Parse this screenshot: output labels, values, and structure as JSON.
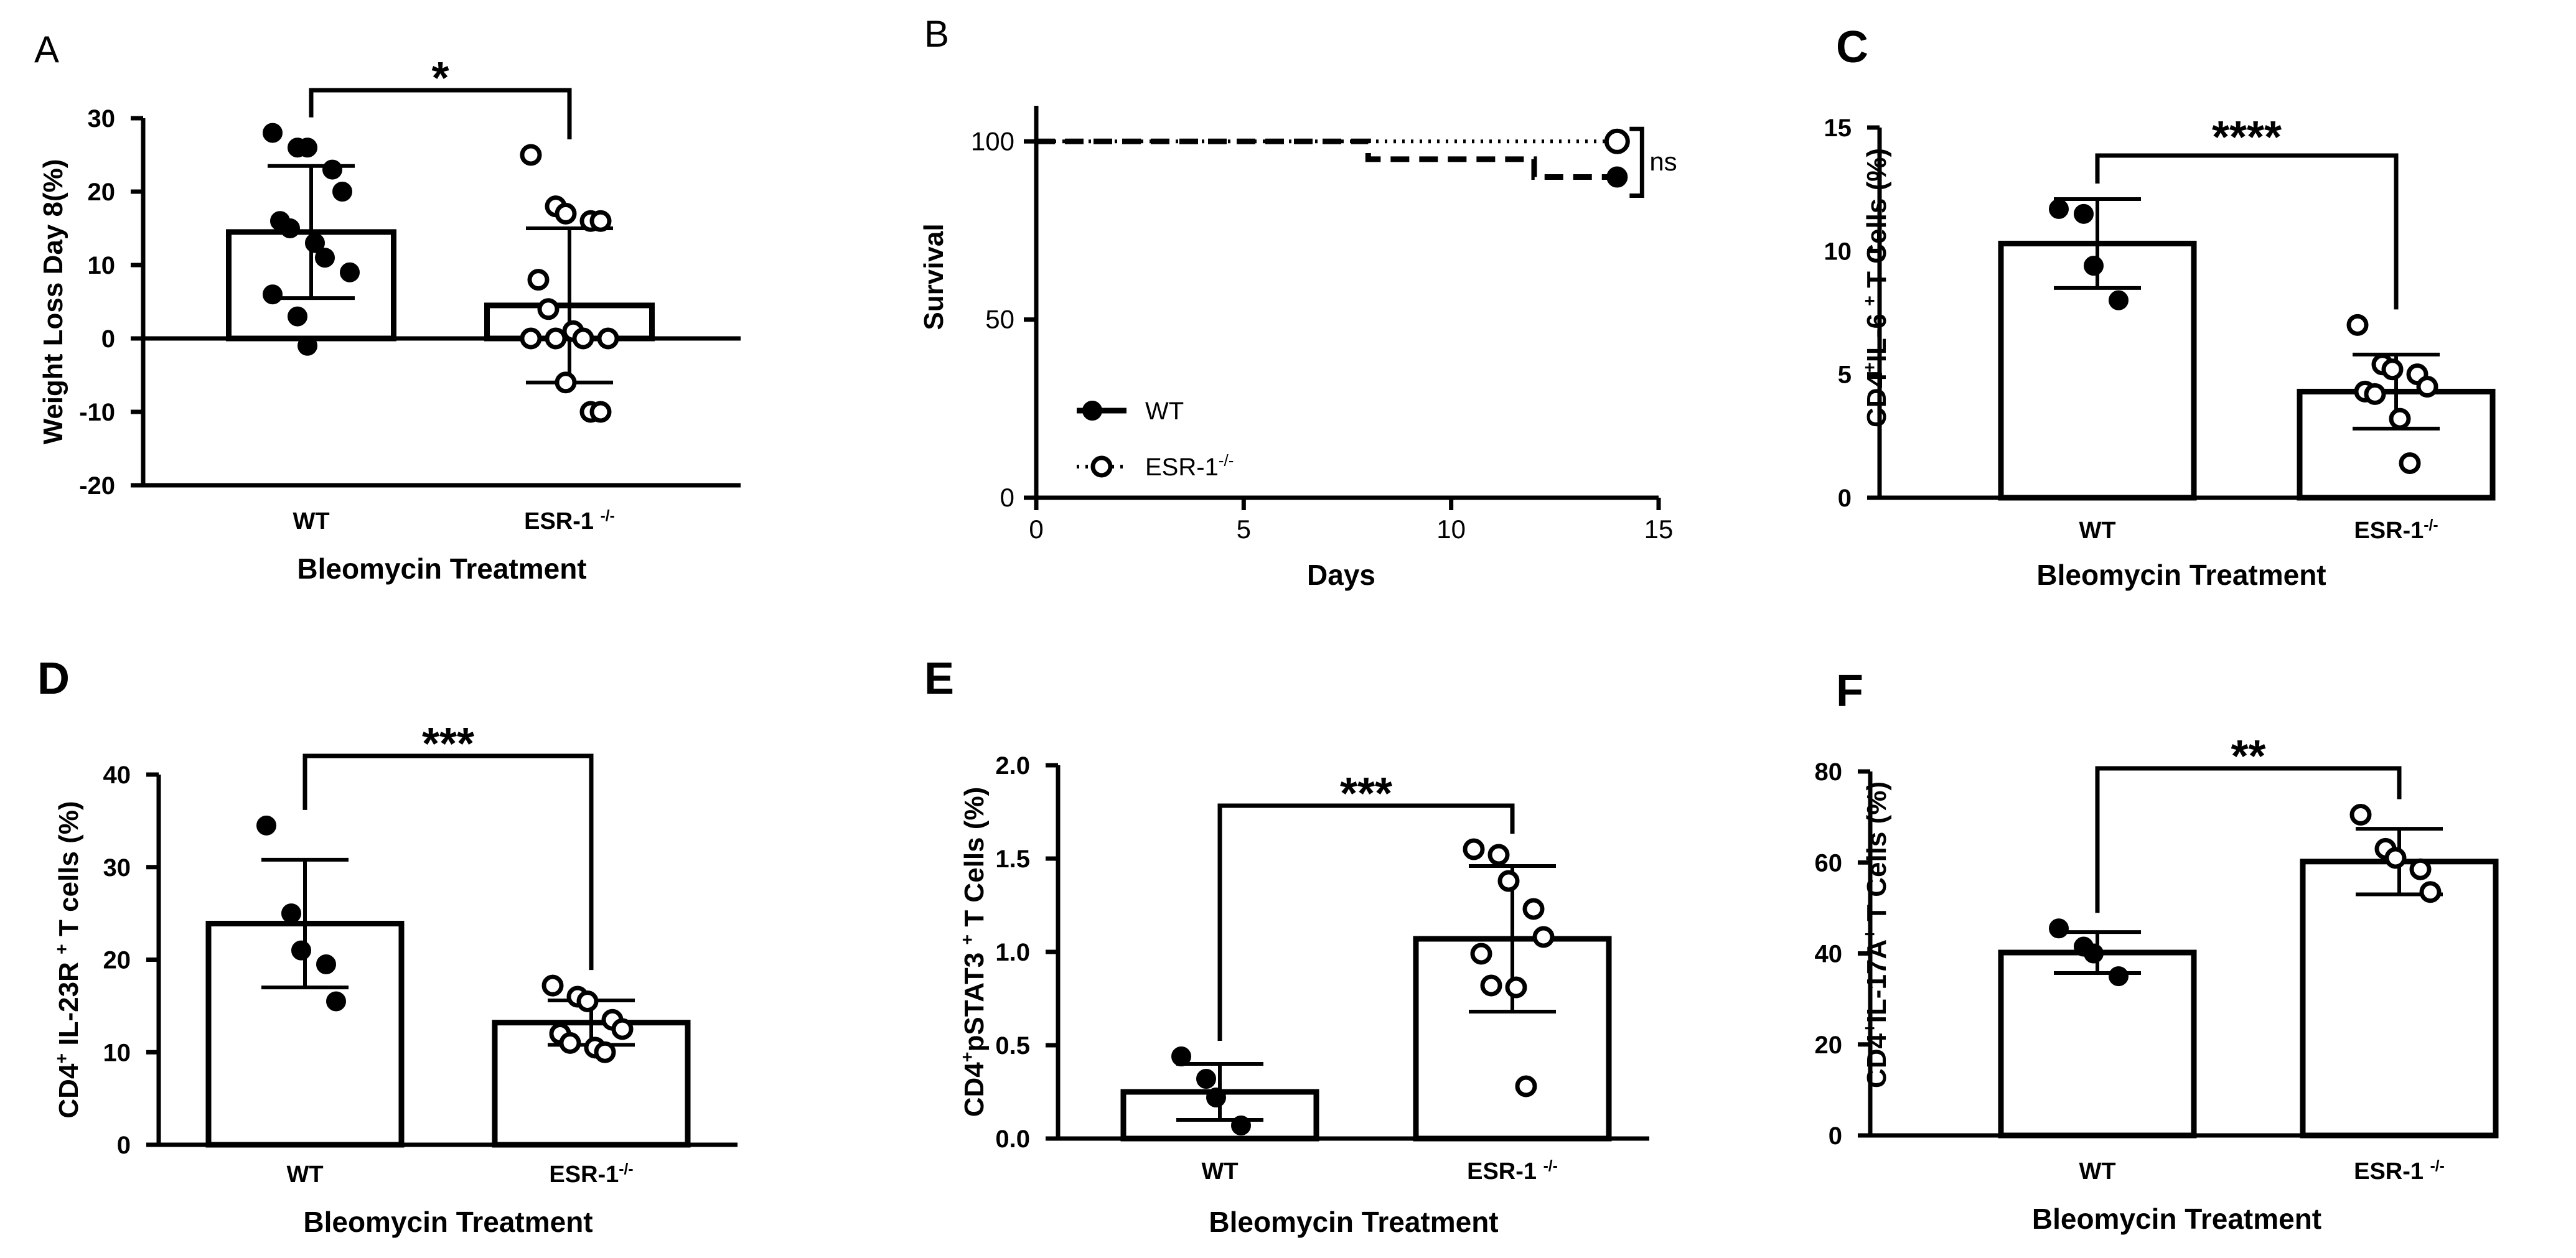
{
  "chart_data": [
    {
      "panel": "A",
      "type": "bar",
      "title": "",
      "xlabel": "Bleomycin Treatment",
      "ylabel": "Weight Loss Day 8(%)",
      "ylim": [
        -20,
        30
      ],
      "yticks": [
        "-20",
        "-10",
        "0",
        "10",
        "20",
        "30"
      ],
      "categories": [
        "WT",
        "ESR-1 -/-"
      ],
      "values": [
        14.5,
        4.5
      ],
      "sd": [
        9,
        10.5
      ],
      "points": [
        [
          28,
          26,
          26,
          23,
          20,
          16,
          15,
          13,
          11,
          9,
          6,
          3,
          -1
        ],
        [
          25,
          18,
          17,
          16,
          16,
          8,
          4,
          1,
          0,
          0,
          0,
          0,
          -6,
          -10,
          -10
        ]
      ],
      "significance": "*"
    },
    {
      "panel": "B",
      "type": "line",
      "title": "",
      "xlabel": "Days",
      "ylabel": "Survival",
      "xlim": [
        0,
        15
      ],
      "ylim": [
        0,
        110
      ],
      "xticks": [
        "0",
        "5",
        "10",
        "15"
      ],
      "yticks": [
        "0",
        "50",
        "100"
      ],
      "series": [
        {
          "name": "WT",
          "steps": [
            [
              0,
              100
            ],
            [
              8,
              100
            ],
            [
              8,
              95
            ],
            [
              12,
              95
            ],
            [
              12,
              90
            ],
            [
              14,
              90
            ]
          ]
        },
        {
          "name": "ESR-1-/-",
          "steps": [
            [
              0,
              100
            ],
            [
              14,
              100
            ]
          ]
        }
      ],
      "significance": "ns"
    },
    {
      "panel": "C",
      "type": "bar",
      "xlabel": "Bleomycin Treatment",
      "ylabel": "CD4+IL-6 + T Cells (%)",
      "ylim": [
        0,
        15
      ],
      "yticks": [
        "0",
        "5",
        "10",
        "15"
      ],
      "categories": [
        "WT",
        "ESR-1-/-"
      ],
      "values": [
        10.3,
        4.3
      ],
      "sd": [
        1.8,
        1.5
      ],
      "points": [
        [
          11.7,
          11.5,
          9.4,
          8.0
        ],
        [
          7.0,
          5.4,
          5.2,
          5.0,
          4.5,
          4.3,
          4.2,
          3.2,
          1.4
        ]
      ],
      "significance": "****"
    },
    {
      "panel": "D",
      "type": "bar",
      "xlabel": "Bleomycin Treatment",
      "ylabel": "CD4+ IL-23R + T cells (%)",
      "ylim": [
        0,
        40
      ],
      "yticks": [
        "0",
        "10",
        "20",
        "30",
        "40"
      ],
      "categories": [
        "WT",
        "ESR-1-/-"
      ],
      "values": [
        23.9,
        13.2
      ],
      "sd": [
        6.9,
        2.4
      ],
      "points": [
        [
          34.5,
          25.0,
          21.0,
          19.5,
          15.5
        ],
        [
          17.2,
          16.0,
          15.5,
          13.5,
          12.5,
          12.0,
          11.0,
          10.5,
          10.0
        ]
      ],
      "significance": "***"
    },
    {
      "panel": "E",
      "type": "bar",
      "xlabel": "Bleomycin Treatment",
      "ylabel": "CD4+pSTAT3 + T Cells (%)",
      "ylim": [
        0,
        2.0
      ],
      "yticks": [
        "0.0",
        "0.5",
        "1.0",
        "1.5",
        "2.0"
      ],
      "categories": [
        "WT",
        "ESR-1 -/-"
      ],
      "values": [
        0.25,
        1.07
      ],
      "sd": [
        0.15,
        0.39
      ],
      "points": [
        [
          0.44,
          0.32,
          0.22,
          0.07
        ],
        [
          1.55,
          1.52,
          1.38,
          1.23,
          1.08,
          0.99,
          0.82,
          0.81,
          0.28
        ]
      ],
      "significance": "***"
    },
    {
      "panel": "F",
      "type": "bar",
      "xlabel": "Bleomycin Treatment",
      "ylabel": "CD4+IL-17A+ T Cells (%)",
      "ylim": [
        0,
        80
      ],
      "yticks": [
        "0",
        "20",
        "40",
        "60",
        "80"
      ],
      "categories": [
        "WT",
        "ESR-1 -/-"
      ],
      "values": [
        40.2,
        60.2
      ],
      "sd": [
        4.5,
        7.2
      ],
      "points": [
        [
          45.5,
          41.5,
          40.0,
          35.0
        ],
        [
          70.5,
          63.0,
          61.0,
          58.5,
          53.5
        ]
      ],
      "significance": "**"
    }
  ]
}
